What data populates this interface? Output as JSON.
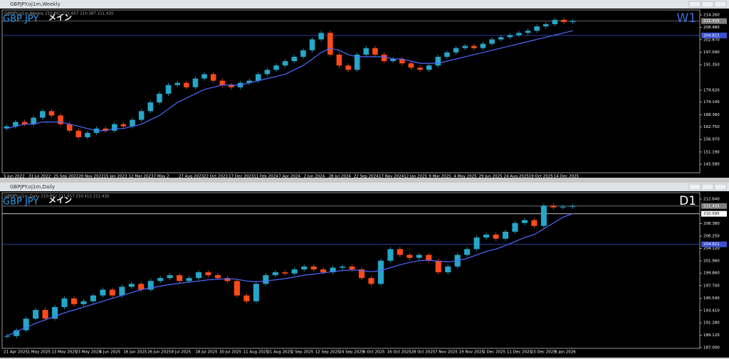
{
  "windows": [
    {
      "window_title": "GBPJPY.oj1m,Weekly",
      "info": "GBPJPY.oj1m,Weekly  210.852 211.657 210.387 211.435",
      "symbol_label": "GBP JPY",
      "tag_label": "メイン",
      "timeframe": "W1",
      "timeframe_color": "#3a6fd8",
      "ylim": [
        141.66,
        216.55
      ],
      "yticks": [
        {
          "value": 214.26,
          "label": "214.260"
        },
        {
          "value": 208.48,
          "label": "208.480"
        },
        {
          "value": 202.87,
          "label": "202.870"
        },
        {
          "value": 197.09,
          "label": "197.090"
        },
        {
          "value": 191.35,
          "label": "191.350"
        },
        {
          "value": 179.62,
          "label": "179.620"
        },
        {
          "value": 174.14,
          "label": "174.140"
        },
        {
          "value": 168.36,
          "label": "168.360"
        },
        {
          "value": 162.75,
          "label": "162.750"
        },
        {
          "value": 156.97,
          "label": "156.970"
        },
        {
          "value": 151.19,
          "label": "151.190"
        },
        {
          "value": 145.58,
          "label": "145.580"
        }
      ],
      "levels": [
        {
          "value": 211.435,
          "color": "#808080"
        },
        {
          "value": 204.821,
          "color": "#3a50d0"
        }
      ],
      "categories": [
        "5 Jun 2022",
        "31 Jul 2022",
        "25 Sep 2022",
        "20 Nov 2022",
        "15 Jan 2023",
        "12 Mar 2023",
        "7 May 2",
        "27 Aug 2023",
        "22 Oct 2023",
        "17 Dec 2023",
        "11 Feb 2024",
        "7 Apr 2024",
        "2 Jun 2024",
        "28 Jul 2024",
        "22 Sep 2024",
        "17 Nov 2024",
        "12 Jan 2025",
        "9 Mar 2025",
        "4 May 2025",
        "29 Jun 2025",
        "24 Aug 2025",
        "19 Oct 2025",
        "14 Dec 2025"
      ],
      "closes": [
        163,
        165,
        164,
        167,
        170,
        168,
        164,
        161,
        158,
        160,
        162,
        161,
        164,
        163,
        166,
        170,
        174,
        178,
        182,
        183,
        181,
        185,
        187,
        184,
        182,
        181,
        183,
        184,
        187,
        189,
        191,
        193,
        195,
        198,
        203,
        206,
        196,
        191,
        189,
        196,
        199,
        196,
        193,
        194,
        192,
        190,
        189,
        191,
        195,
        197,
        199,
        200,
        199,
        201,
        203,
        204,
        205,
        206,
        207,
        209,
        210,
        212,
        211,
        211.435
      ],
      "ma": [
        162,
        163,
        164,
        164,
        165,
        165,
        165,
        164,
        163,
        162,
        161,
        161,
        162,
        162,
        163,
        164,
        166,
        168,
        171,
        174,
        176,
        178,
        180,
        181,
        182,
        182,
        182,
        183,
        184,
        185,
        186,
        187,
        189,
        191,
        194,
        197,
        199,
        198,
        196,
        195,
        195,
        195,
        195,
        194,
        194,
        193,
        192,
        192,
        192,
        193,
        194,
        195,
        196,
        197,
        198,
        199,
        200,
        201,
        202,
        203,
        204,
        205,
        206,
        207
      ]
    },
    {
      "window_title": "GBPJPY.oj1m,Daily",
      "info": "GBPJPY.oj1m,Daily  210.852 211.657 210.412 211.435",
      "symbol_label": "GBP JPY",
      "tag_label": "メイン",
      "timeframe": "D1",
      "timeframe_color": "#ffffff",
      "ylim": [
        186.88,
        213.74
      ],
      "yticks": [
        {
          "value": 212.64,
          "label": "212.640"
        },
        {
          "value": 208.38,
          "label": "208.380"
        },
        {
          "value": 206.25,
          "label": "206.250"
        },
        {
          "value": 204.12,
          "label": "204.120"
        },
        {
          "value": 201.96,
          "label": "201.960"
        },
        {
          "value": 199.86,
          "label": "199.860"
        },
        {
          "value": 197.7,
          "label": "197.700"
        },
        {
          "value": 195.54,
          "label": "195.540"
        },
        {
          "value": 193.41,
          "label": "193.410"
        },
        {
          "value": 191.28,
          "label": "191.280"
        },
        {
          "value": 189.12,
          "label": "189.120"
        },
        {
          "value": 187,
          "label": "187.000"
        }
      ],
      "levels": [
        {
          "value": 211.435,
          "color": "#808080"
        },
        {
          "value": 210.095,
          "color": "#ffffff"
        },
        {
          "value": 204.821,
          "color": "#3a50d0"
        }
      ],
      "categories": [
        "21 Apr 2025",
        "1 May 2025",
        "13 May 2025",
        "23 May 2025",
        "4 Jun 2025",
        "16 Jun 2025",
        "26 Jun 2025",
        "8 Jul 2025",
        "18 Jul 2025",
        "30 Jul 2025",
        "11 Aug 2025",
        "21 Aug 2025",
        "2 Sep 2025",
        "12 Sep 2025",
        "24 Sep 2025",
        "6 Oct 2025",
        "16 Oct 2025",
        "28 Oct 2025",
        "7 Nov 2025",
        "19 Nov 2025",
        "1 Dec 2025",
        "11 Dec 2025",
        "23 Dec 2025",
        "6 Jan 2026"
      ],
      "closes": [
        189,
        190,
        192,
        193.5,
        192,
        194,
        195.5,
        194.5,
        195,
        196,
        197,
        196,
        197.5,
        198,
        197,
        198.5,
        199,
        199.5,
        198.5,
        199,
        200,
        199.5,
        199,
        198.5,
        196,
        195,
        198,
        199.5,
        200,
        199.8,
        200.5,
        201,
        200.5,
        200,
        200.8,
        201,
        200.5,
        199,
        198,
        202,
        204,
        203,
        202.5,
        203,
        202,
        200,
        201,
        203,
        204,
        206,
        206.5,
        205.8,
        207,
        208.5,
        209,
        208,
        211.5,
        211.2,
        211.3,
        211.435
      ],
      "ma": [
        189,
        189.8,
        190.5,
        191.2,
        191.8,
        192.4,
        193,
        193.5,
        194,
        194.5,
        195,
        195.5,
        196,
        196.5,
        197,
        197.3,
        197.6,
        197.9,
        198.1,
        198.3,
        198.5,
        198.7,
        198.8,
        198.9,
        198.8,
        198.5,
        198.4,
        198.5,
        198.7,
        198.9,
        199.2,
        199.5,
        199.7,
        199.9,
        200.1,
        200.3,
        200.4,
        200.3,
        200.1,
        200.3,
        200.8,
        201.3,
        201.7,
        202,
        202.1,
        201.9,
        201.8,
        202,
        202.4,
        203,
        203.6,
        204,
        204.6,
        205.3,
        206,
        206.5,
        207.5,
        208.5,
        209.5,
        210.1
      ]
    }
  ]
}
